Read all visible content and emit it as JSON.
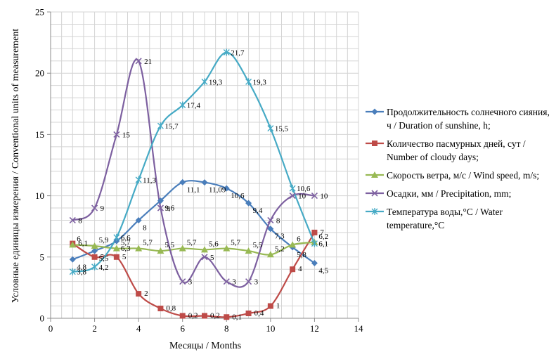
{
  "chart_data": {
    "type": "line",
    "xlabel": "Месяцы / Months",
    "ylabel": "Условные единицы измерения / Conventional units of measurement",
    "xlim": [
      0,
      14
    ],
    "ylim": [
      0,
      25
    ],
    "xticks": [
      "0",
      "2",
      "4",
      "6",
      "8",
      "10",
      "12",
      "14"
    ],
    "yticks": [
      "0",
      "5",
      "10",
      "15",
      "20",
      "25"
    ],
    "grid": true,
    "legend_position": "right",
    "x": [
      1,
      2,
      3,
      4,
      5,
      6,
      7,
      8,
      9,
      10,
      11,
      12
    ],
    "series": [
      {
        "name": "Продолжительность солнечного сияния, ч / Duration of sunshine, h;",
        "color": "#4a7ebb",
        "marker": "diamond",
        "values": [
          4.8,
          5.5,
          6.3,
          8,
          9.6,
          11.1,
          11.09,
          10.6,
          9.4,
          7.3,
          5.8,
          4.5
        ],
        "labels": [
          "4,8",
          "5,5",
          "6,3",
          "8",
          "9,6",
          "11,1",
          "11,09",
          "10,6",
          "9,4",
          "7,3",
          "5,8",
          "4,5"
        ]
      },
      {
        "name": "Количество пасмурных дней, сут / Number of cloudy days;",
        "color": "#be4b48",
        "marker": "square",
        "values": [
          6.1,
          5,
          5,
          2,
          0.8,
          0.2,
          0.2,
          0.1,
          0.4,
          1,
          4,
          7
        ],
        "labels": [
          "6,1",
          "5",
          "5",
          "2",
          "0,8",
          "0,2",
          "0,2",
          "0,1",
          "0,4",
          "1",
          "4",
          "7"
        ]
      },
      {
        "name": "Скорость ветра, м/с / Wind speed, m/s;",
        "color": "#98b954",
        "marker": "triangle",
        "values": [
          6,
          5.9,
          5.7,
          5.7,
          5.5,
          5.7,
          5.6,
          5.7,
          5.5,
          5.2,
          6,
          6.2
        ],
        "labels": [
          "6",
          "5,9",
          "5,7",
          "5,7",
          "5,5",
          "5,7",
          "5,6",
          "5,7",
          "5,5",
          "5,2",
          "6",
          "6,2"
        ]
      },
      {
        "name": "Осадки, мм / Precipitation, mm;",
        "color": "#7d60a0",
        "marker": "x",
        "values": [
          8,
          9,
          15,
          21,
          9,
          3,
          5,
          3,
          3,
          8,
          10,
          10
        ],
        "labels": [
          "8",
          "9",
          "15",
          "21",
          "9",
          "3",
          "5",
          "3",
          "3",
          "8",
          "10",
          "10"
        ]
      },
      {
        "name": "Температура воды,°C / Water temperature,°C",
        "color": "#46aac5",
        "marker": "star",
        "values": [
          3.8,
          4.2,
          6.6,
          11.3,
          15.7,
          17.4,
          19.3,
          21.7,
          19.3,
          15.5,
          10.6,
          6.1
        ],
        "labels": [
          "3,8",
          "4,2",
          "6,6",
          "11,3",
          "15,7",
          "17,4",
          "19,3",
          "21,7",
          "19,3",
          "15,5",
          "10,6",
          "6,1"
        ]
      }
    ]
  }
}
